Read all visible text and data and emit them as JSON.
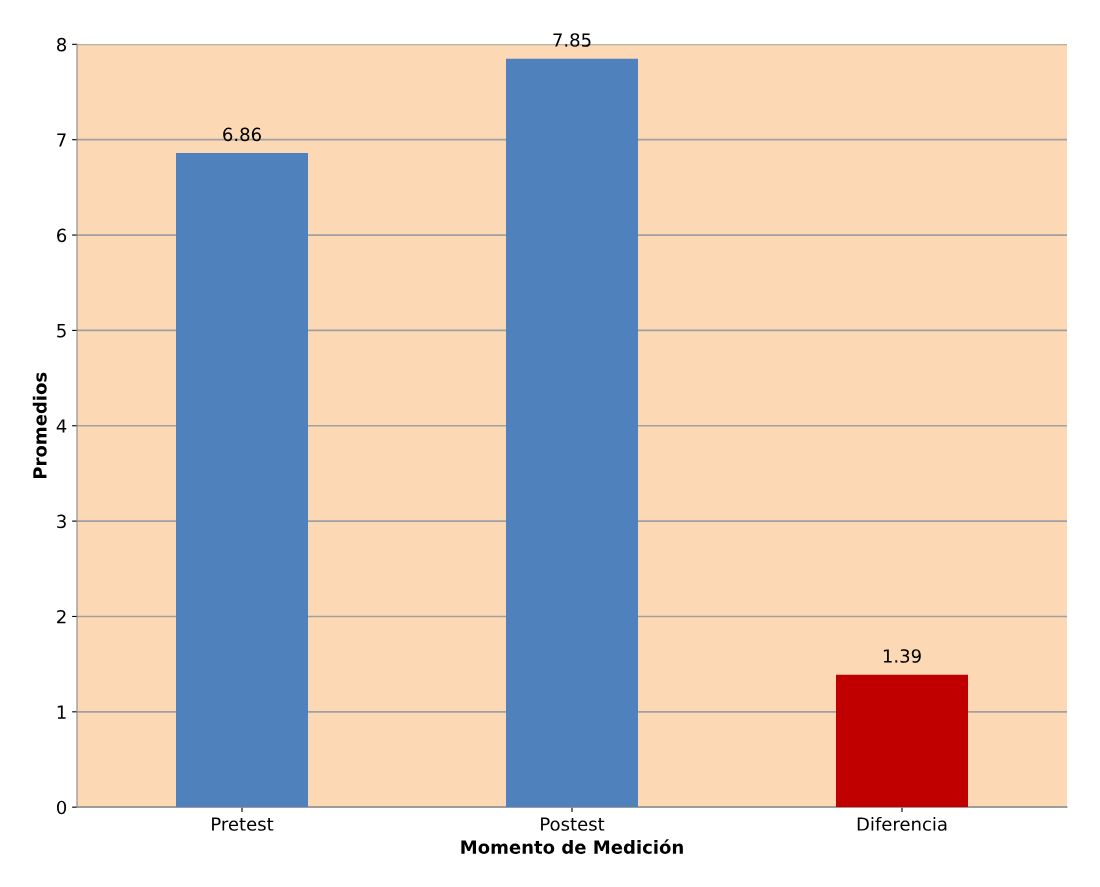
{
  "chart_data": {
    "type": "bar",
    "xlabel": "Momento de Medición",
    "ylabel": "Promedios",
    "categories": [
      "Pretest",
      "Postest",
      "Diferencia"
    ],
    "values": [
      6.86,
      7.85,
      1.39
    ],
    "colors": [
      "#4f81bd",
      "#4f81bd",
      "#c00000"
    ],
    "data_labels": true,
    "ylim": [
      0,
      8
    ],
    "yticks": [
      0,
      1,
      2,
      3,
      4,
      5,
      6,
      7,
      8
    ],
    "grid": "y",
    "legend": false
  }
}
